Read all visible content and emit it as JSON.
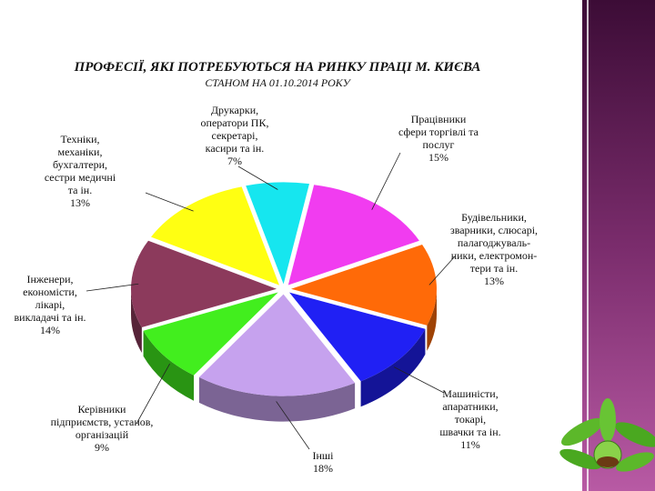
{
  "chart_data": {
    "type": "pie3d",
    "title": "ПРОФЕСІЇ, ЯКІ ПОТРЕБУЮТЬСЯ НА РИНКУ ПРАЦІ М. КИЄВА",
    "subtitle": "СТАНОМ НА 01.10.2014 РОКУ",
    "categories": [
      "Друкарки,\nоператори ПК,\nсекретарі,\nкасири та ін.",
      "Працівники\nсфери торгівлі та\nпослуг",
      "Будівельники,\nзварники, слюсарі,\nпалагоджуваль-\nники, електромон-\nтери та ін.",
      "Машиністи,\nапаратники,\nтокарі,\nшвачки та ін.",
      "Інші",
      "Керівники\nпідприємств, установ,\nорганізацій",
      "Інженери,\nекономісти,\nлікарі,\nвикладачі та ін.",
      "Техніки,\nмеханіки,\nбухгалтери,\nсестри медичні\nта ін."
    ],
    "values": [
      7,
      15,
      13,
      11,
      18,
      9,
      14,
      13
    ],
    "value_labels": [
      "7%",
      "15%",
      "13%",
      "11%",
      "18%",
      "9%",
      "14%",
      "13%"
    ],
    "colors": [
      "#16e6ef",
      "#f13cf0",
      "#ff6a08",
      "#2020f4",
      "#c6a2ee",
      "#42ee1e",
      "#8c3a5c",
      "#ffff12"
    ]
  }
}
